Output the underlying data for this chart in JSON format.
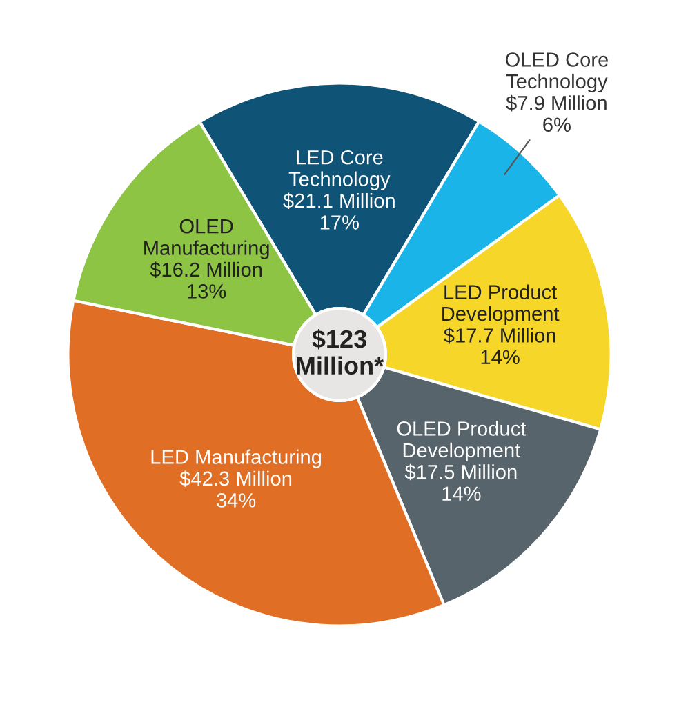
{
  "chart_data": {
    "type": "donut",
    "categories": [
      "LED Core\nTechnology",
      "OLED Core\nTechnology",
      "LED Product\nDevelopment",
      "OLED Product\nDevelopment",
      "LED Manufacturing",
      "OLED\nManufacturing"
    ],
    "values": [
      21.1,
      7.9,
      17.7,
      17.5,
      42.3,
      16.2
    ],
    "value_labels": [
      "$21.1 Million\n17%",
      "$7.9 Million\n6%",
      "$17.7 Million\n14%",
      "$17.5 Million\n14%",
      "$42.3 Million\n34%",
      "$16.2 Million\n13%"
    ],
    "colors": [
      "#0f5377",
      "#1ab4e8",
      "#f5d629",
      "#58646b",
      "#e06f25",
      "#8dc443"
    ],
    "annotations": [
      "$123\nMillion*"
    ],
    "legend": false
  }
}
